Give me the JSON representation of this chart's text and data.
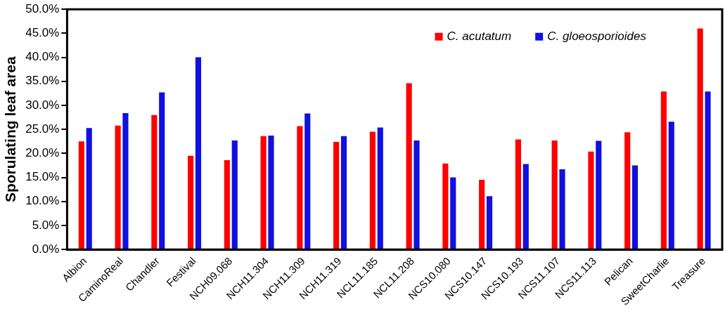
{
  "chart_data": {
    "type": "bar",
    "ylabel": "Sporulating leaf area",
    "categories": [
      "Albion",
      "CaminoReal",
      "Chandler",
      "Festival",
      "NCH09.068",
      "NCH11.304",
      "NCH11.309",
      "NCH11.319",
      "NCL11.185",
      "NCL11.208",
      "NCS10.080",
      "NCS10.147",
      "NCS10.193",
      "NCS11.107",
      "NCS11.113",
      "Pelican",
      "SweetCharlie",
      "Treasure"
    ],
    "series": [
      {
        "name": "C. acutatum",
        "color": "#ff0000",
        "values": [
          22.5,
          25.8,
          28.0,
          19.5,
          18.6,
          23.6,
          25.7,
          22.4,
          24.5,
          34.6,
          17.9,
          14.5,
          22.9,
          22.7,
          20.4,
          24.4,
          32.9,
          46.0
        ]
      },
      {
        "name": "C. gloeosporioides",
        "color": "#1010e0",
        "values": [
          25.3,
          28.4,
          32.7,
          40.0,
          22.7,
          23.7,
          28.3,
          23.6,
          25.4,
          22.7,
          15.0,
          11.1,
          17.8,
          16.7,
          22.6,
          17.5,
          26.6,
          32.9
        ]
      }
    ],
    "ylim": [
      0,
      50
    ],
    "yticks": [
      {
        "value": 0,
        "label": "0.0%"
      },
      {
        "value": 5,
        "label": "5.0%"
      },
      {
        "value": 10,
        "label": "10.0%"
      },
      {
        "value": 15,
        "label": "15.0%"
      },
      {
        "value": 20,
        "label": "20.0%"
      },
      {
        "value": 25,
        "label": "25.0%"
      },
      {
        "value": 30,
        "label": "30.0%"
      },
      {
        "value": 35,
        "label": "35.0%"
      },
      {
        "value": 40,
        "label": "40.0%"
      },
      {
        "value": 45,
        "label": "45.0%"
      },
      {
        "value": 50,
        "label": "50.0%"
      }
    ],
    "grid": false,
    "legend": "top right"
  }
}
